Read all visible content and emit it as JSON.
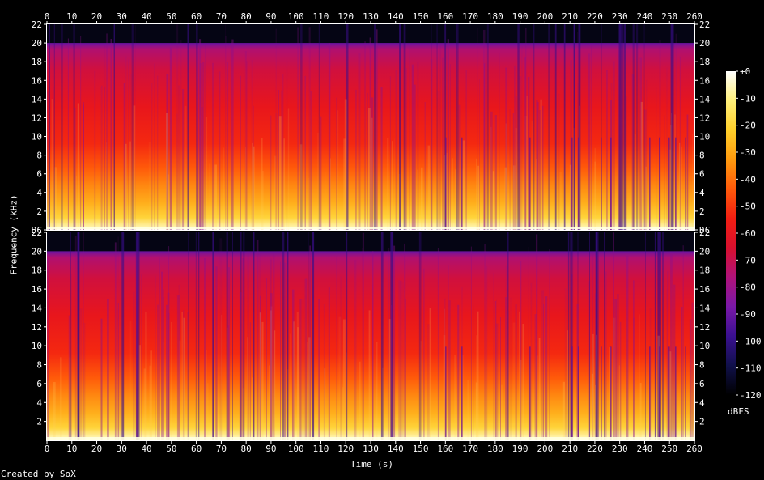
{
  "chart_data": {
    "type": "heatmap",
    "subtype": "spectrogram",
    "xlabel": "Time (s)",
    "ylabel": "Frequency (kHz)",
    "x_ticks": [
      0,
      10,
      20,
      30,
      40,
      50,
      60,
      70,
      80,
      90,
      100,
      110,
      120,
      130,
      140,
      150,
      160,
      170,
      180,
      190,
      200,
      210,
      220,
      230,
      240,
      250,
      260
    ],
    "xlim": [
      0,
      260
    ],
    "channels": [
      {
        "y_ticks": [
          "DC",
          "2",
          "4",
          "6",
          "8",
          "10",
          "12",
          "14",
          "16",
          "18",
          "20",
          "22"
        ]
      },
      {
        "y_ticks": [
          "2",
          "4",
          "6",
          "8",
          "10",
          "12",
          "14",
          "16",
          "18",
          "20",
          "22"
        ]
      }
    ],
    "ylim_khz": [
      0,
      22
    ],
    "lowpass_cutoff_khz": 20,
    "colorbar": {
      "label": "dBFS",
      "ticks": [
        "-120",
        "-110",
        "-100",
        "-90",
        "-80",
        "-70",
        "-60",
        "-50",
        "-40",
        "-30",
        "-20",
        "-10",
        "+0"
      ],
      "range": [
        -120,
        0
      ],
      "stops": [
        "#000000",
        "#10104a",
        "#3a1090",
        "#7a18a8",
        "#b0127a",
        "#d8102e",
        "#f21e12",
        "#ff5a0a",
        "#ff9a0e",
        "#ffcf2a",
        "#fff07a",
        "#ffffff"
      ]
    },
    "footer": "Created by SoX"
  }
}
